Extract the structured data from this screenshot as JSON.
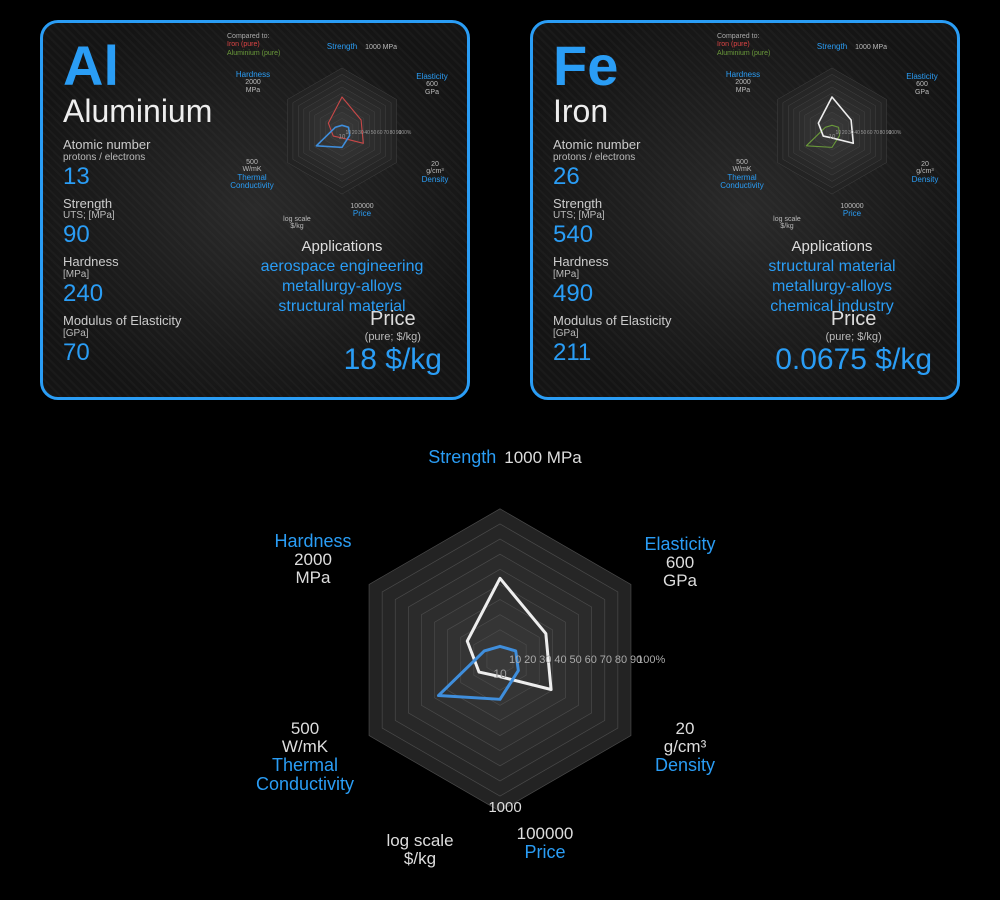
{
  "colors": {
    "accent": "#2a9df5",
    "white_line": "#eeeeee",
    "blue_line": "#3f8edc",
    "red_line": "#c84848",
    "green_line": "#6a9a3a",
    "grid": "#4a4a4a",
    "hex_fill_outer": "#242424",
    "hex_fill_inner": "#313131",
    "text_muted": "#bbbbbb"
  },
  "radar": {
    "type": "radar",
    "axes": [
      {
        "key": "strength",
        "label": "Strength",
        "max_label": "1000 MPa",
        "max": 1000
      },
      {
        "key": "elasticity",
        "label": "Elasticity",
        "max_label": "600\nGPa",
        "max": 600
      },
      {
        "key": "density",
        "label": "Density",
        "max_label": "20\ng/cm³",
        "max": 20
      },
      {
        "key": "price",
        "label": "Price",
        "max_label": "100000",
        "sub": "log scale\n$/kg",
        "max": 5
      },
      {
        "key": "thermal",
        "label": "Thermal\nConductivity",
        "max_label": "500\nW/mK",
        "max": 500
      },
      {
        "key": "hardness",
        "label": "Hardness",
        "max_label": "2000\nMPa",
        "max": 2000
      }
    ],
    "tick_percent_labels": [
      "10",
      "20",
      "30",
      "40",
      "50",
      "60",
      "70",
      "80",
      "90",
      "100%"
    ],
    "bottom_tick": "1000"
  },
  "cards": [
    {
      "id": "al",
      "symbol": "Al",
      "name": "Aluminium",
      "legend_compared": "Compared to:",
      "legend1": "Iron (pure)",
      "legend2": "Aluminium (pure)",
      "props": [
        {
          "label": "Atomic number",
          "sub": "protons / electrons",
          "value": "13"
        },
        {
          "label": "Strength",
          "sub": "UTS; [MPa]",
          "value": "90"
        },
        {
          "label": "Hardness",
          "sub": "[MPa]",
          "value": "240"
        },
        {
          "label": "Modulus of Elasticity",
          "sub": "[GPa]",
          "value": "70"
        }
      ],
      "applications_label": "Applications",
      "applications": [
        "aerospace engineering",
        "metallurgy-alloys",
        "structural material"
      ],
      "price_label": "Price",
      "price_sub": "(pure; $/kg)",
      "price_value": "18 $/kg",
      "series": {
        "primary_color": "#3f8edc",
        "primary_pct": {
          "strength": 9,
          "elasticity": 12,
          "density": 14,
          "price": 26,
          "thermal": 47,
          "hardness": 12
        },
        "compare_color": "#c84848",
        "compare_pct": {
          "strength": 54,
          "elasticity": 35,
          "density": 39,
          "price": 11,
          "thermal": 16,
          "hardness": 25
        }
      }
    },
    {
      "id": "fe",
      "symbol": "Fe",
      "name": "Iron",
      "legend_compared": "Compared to:",
      "legend1": "Iron (pure)",
      "legend2": "Aluminium (pure)",
      "props": [
        {
          "label": "Atomic number",
          "sub": "protons / electrons",
          "value": "26"
        },
        {
          "label": "Strength",
          "sub": "UTS; [MPa]",
          "value": "540"
        },
        {
          "label": "Hardness",
          "sub": "[MPa]",
          "value": "490"
        },
        {
          "label": "Modulus of Elasticity",
          "sub": "[GPa]",
          "value": "211"
        }
      ],
      "applications_label": "Applications",
      "applications": [
        "structural material",
        "metallurgy-alloys",
        "chemical industry"
      ],
      "price_label": "Price",
      "price_sub": "(pure; $/kg)",
      "price_value": "0.0675 $/kg",
      "series": {
        "primary_color": "#eeeeee",
        "primary_pct": {
          "strength": 54,
          "elasticity": 35,
          "density": 39,
          "price": 11,
          "thermal": 16,
          "hardness": 25
        },
        "compare_color": "#6a9a3a",
        "compare_pct": {
          "strength": 9,
          "elasticity": 12,
          "density": 14,
          "price": 26,
          "thermal": 47,
          "hardness": 12
        }
      }
    }
  ],
  "big_chart": {
    "series": [
      {
        "color": "#eeeeee",
        "width": 3,
        "pct": {
          "strength": 54,
          "elasticity": 35,
          "density": 39,
          "price": 11,
          "thermal": 16,
          "hardness": 25
        }
      },
      {
        "color": "#3f8edc",
        "width": 3,
        "pct": {
          "strength": 9,
          "elasticity": 12,
          "density": 14,
          "price": 26,
          "thermal": 47,
          "hardness": 12
        }
      }
    ]
  }
}
